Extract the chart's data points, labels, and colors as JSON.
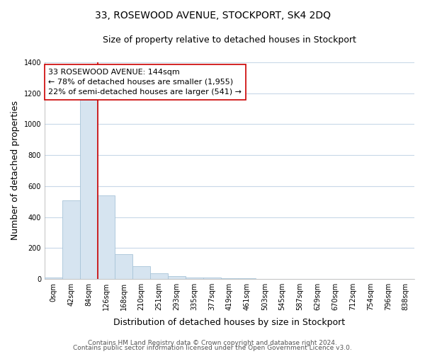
{
  "title": "33, ROSEWOOD AVENUE, STOCKPORT, SK4 2DQ",
  "subtitle": "Size of property relative to detached houses in Stockport",
  "xlabel": "Distribution of detached houses by size in Stockport",
  "ylabel": "Number of detached properties",
  "bar_labels": [
    "0sqm",
    "42sqm",
    "84sqm",
    "126sqm",
    "168sqm",
    "210sqm",
    "251sqm",
    "293sqm",
    "335sqm",
    "377sqm",
    "419sqm",
    "461sqm",
    "503sqm",
    "545sqm",
    "587sqm",
    "629sqm",
    "670sqm",
    "712sqm",
    "754sqm",
    "796sqm",
    "838sqm"
  ],
  "bar_values": [
    10,
    507,
    1155,
    540,
    160,
    82,
    35,
    20,
    12,
    8,
    5,
    3,
    0,
    0,
    0,
    0,
    0,
    0,
    0,
    0,
    0
  ],
  "bar_color": "#d6e4f0",
  "bar_edge_color": "#a8c4d8",
  "property_line_color": "#cc0000",
  "annotation_title": "33 ROSEWOOD AVENUE: 144sqm",
  "annotation_line1": "← 78% of detached houses are smaller (1,955)",
  "annotation_line2": "22% of semi-detached houses are larger (541) →",
  "annotation_box_color": "#ffffff",
  "annotation_box_edge": "#cc0000",
  "ylim": [
    0,
    1400
  ],
  "yticks": [
    0,
    200,
    400,
    600,
    800,
    1000,
    1200,
    1400
  ],
  "footer1": "Contains HM Land Registry data © Crown copyright and database right 2024.",
  "footer2": "Contains public sector information licensed under the Open Government Licence v3.0.",
  "background_color": "#ffffff",
  "plot_bg_color": "#ffffff",
  "grid_color": "#c8d8e8",
  "title_fontsize": 10,
  "subtitle_fontsize": 9,
  "axis_label_fontsize": 9,
  "tick_fontsize": 7,
  "annotation_fontsize": 8,
  "footer_fontsize": 6.5
}
